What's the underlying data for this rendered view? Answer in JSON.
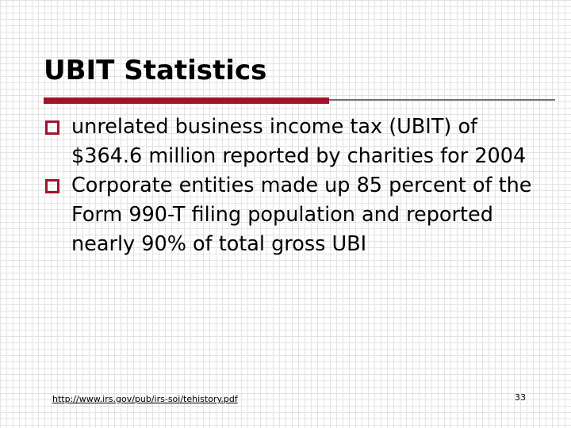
{
  "slide": {
    "title": "UBIT Statistics",
    "accent_color": "#a0142b",
    "bullets": [
      {
        "icon": "hollow-square-bullet-icon",
        "text": "unrelated business income tax (UBIT) of $364.6 million reported by charities for 2004"
      },
      {
        "icon": "hollow-square-bullet-icon",
        "text": "Corporate entities made up 85 percent of the Form 990-T filing population and reported nearly 90% of total gross UBI"
      }
    ]
  },
  "footer": {
    "link": "http://www.irs.gov/pub/irs-soi/tehistory.pdf",
    "page_number": "33"
  }
}
